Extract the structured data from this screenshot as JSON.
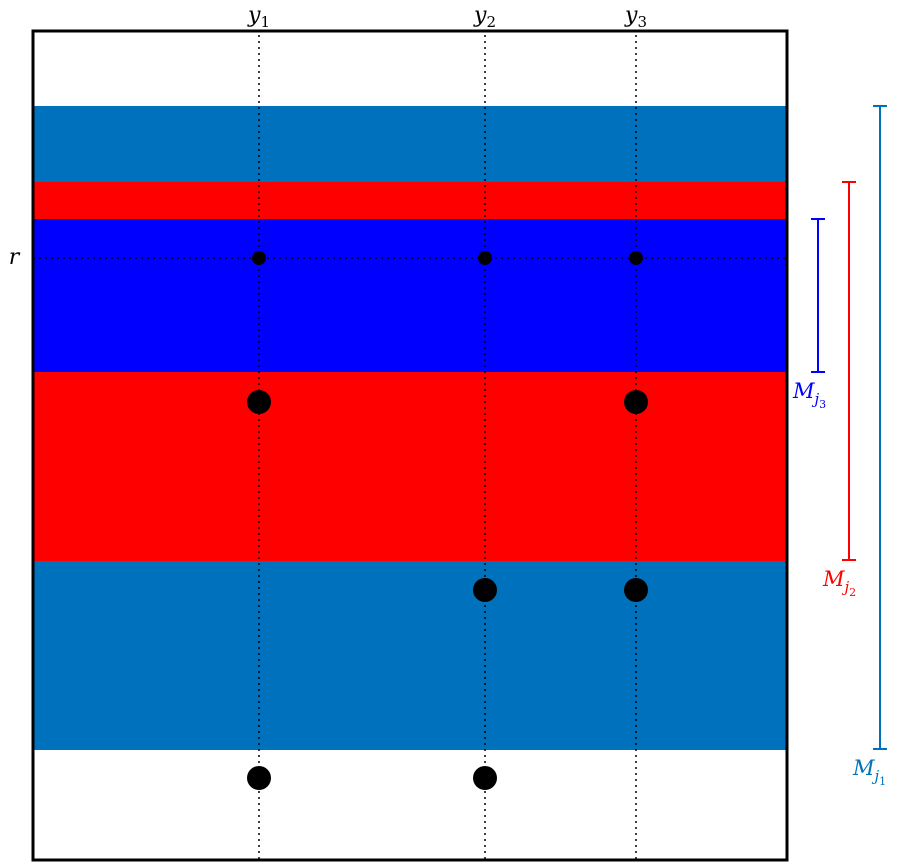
{
  "columns": [
    {
      "name": "y",
      "sub": "1"
    },
    {
      "name": "y",
      "sub": "2"
    },
    {
      "name": "y",
      "sub": "3"
    }
  ],
  "row_label": "r",
  "bands": [
    {
      "key": "j1",
      "color": "#0072bd"
    },
    {
      "key": "j2",
      "color": "#ff0000"
    },
    {
      "key": "j3",
      "color": "#0000ff"
    }
  ],
  "brackets": [
    {
      "name": "M",
      "sub": "j",
      "subsub": "3",
      "color": "#0000ff"
    },
    {
      "name": "M",
      "sub": "j",
      "subsub": "2",
      "color": "#ff0000"
    },
    {
      "name": "M",
      "sub": "j",
      "subsub": "1",
      "color": "#0072bd"
    }
  ]
}
